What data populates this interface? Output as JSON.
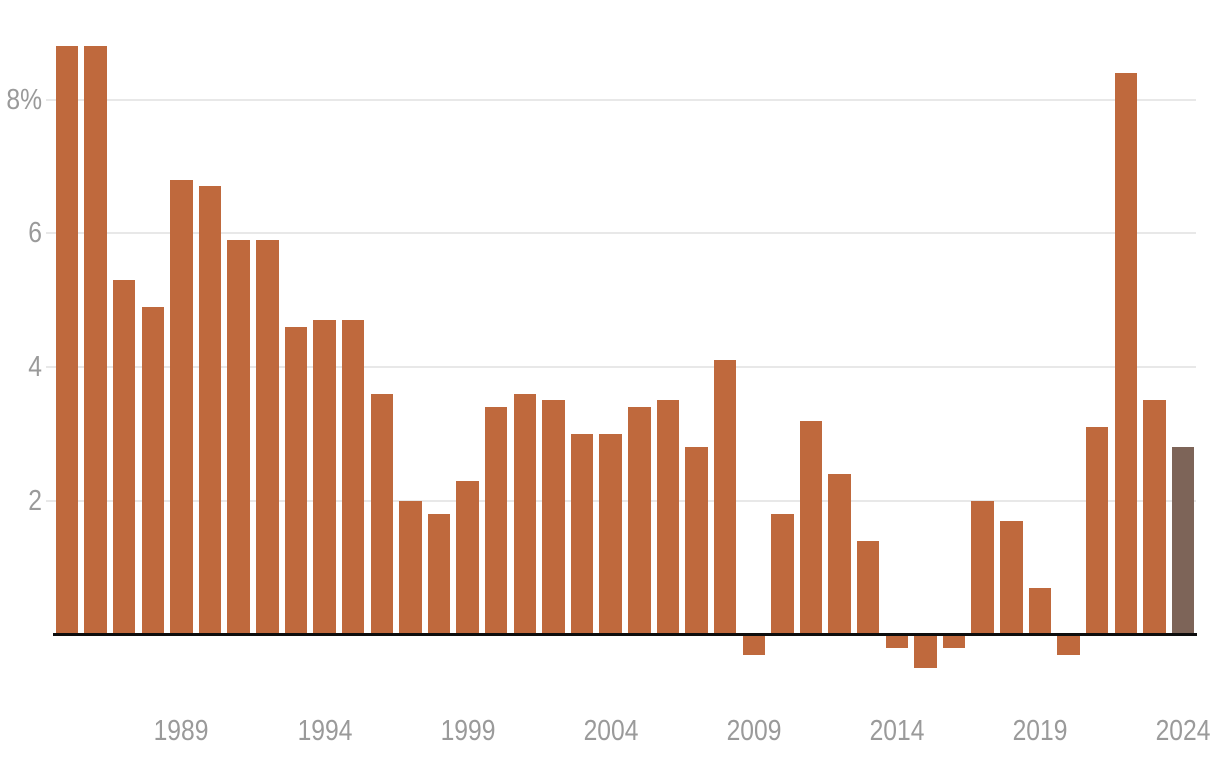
{
  "chart_data": {
    "type": "bar",
    "title": "",
    "xlabel": "",
    "ylabel": "",
    "unit": "%",
    "years": [
      1985,
      1986,
      1987,
      1988,
      1989,
      1990,
      1991,
      1992,
      1993,
      1994,
      1995,
      1996,
      1997,
      1998,
      1999,
      2000,
      2001,
      2002,
      2003,
      2004,
      2005,
      2006,
      2007,
      2008,
      2009,
      2010,
      2011,
      2012,
      2013,
      2014,
      2015,
      2016,
      2017,
      2018,
      2019,
      2020,
      2021,
      2022,
      2023,
      2024
    ],
    "values": [
      8.8,
      8.8,
      5.3,
      4.9,
      6.8,
      6.7,
      5.9,
      5.9,
      4.6,
      4.7,
      4.7,
      3.6,
      2.0,
      1.8,
      2.3,
      3.4,
      3.6,
      3.5,
      3.0,
      3.0,
      3.4,
      3.5,
      2.8,
      4.1,
      -0.3,
      1.8,
      3.2,
      2.4,
      1.4,
      -0.2,
      -0.5,
      -0.2,
      2.0,
      1.7,
      0.7,
      -0.3,
      3.1,
      8.4,
      3.5,
      2.8
    ],
    "highlighted_year": 2024,
    "y_ticks": [
      {
        "value": 8,
        "label": "8%"
      },
      {
        "value": 6,
        "label": "6"
      },
      {
        "value": 4,
        "label": "4"
      },
      {
        "value": 2,
        "label": "2"
      }
    ],
    "x_tick_labels": [
      "1989",
      "1994",
      "1999",
      "2004",
      "2009",
      "2014",
      "2019",
      "2024"
    ],
    "ylim": [
      -0.75,
      8.95
    ],
    "grid": "horizontal",
    "legend_position": "none",
    "colors": {
      "bar": "#bf693d",
      "highlighted_bar": "#7d6458",
      "gridline": "#e8e8e8",
      "axis_line": "#0d0d0d",
      "tick_label": "#9a9a9a"
    }
  }
}
